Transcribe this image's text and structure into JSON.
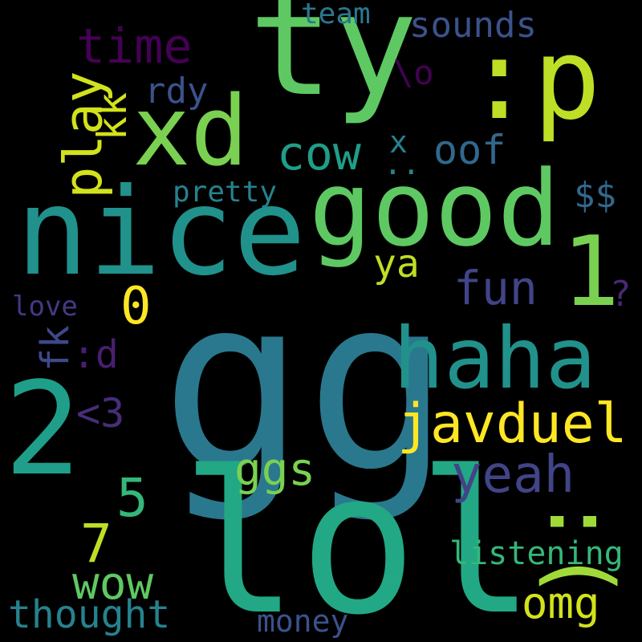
{
  "words": [
    {
      "text": "gg",
      "color": "#2a788e"
    },
    {
      "text": "lol",
      "color": "#22a884"
    },
    {
      "text": "ty",
      "color": "#5ec962"
    },
    {
      "text": ":p",
      "color": "#bddf26"
    },
    {
      "text": "nice",
      "color": "#21918c"
    },
    {
      "text": "good",
      "color": "#5ec962"
    },
    {
      "text": "xd",
      "color": "#7ad151"
    },
    {
      "text": "haha",
      "color": "#21918c"
    },
    {
      "text": "2",
      "color": "#1f9e89"
    },
    {
      "text": "1",
      "color": "#7ad151"
    },
    {
      "text": "javduel",
      "color": "#fde725"
    },
    {
      "text": ":(",
      "color": "#a0da39"
    },
    {
      "text": "time",
      "color": "#440154"
    },
    {
      "text": "play",
      "color": "#d2e21b"
    },
    {
      "text": "cow",
      "color": "#1f9e89"
    },
    {
      "text": "sounds",
      "color": "#3b528b"
    },
    {
      "text": "team",
      "color": "#2a788e"
    },
    {
      "text": "\\o",
      "color": "#440154"
    },
    {
      "text": "rdy",
      "color": "#3b528b"
    },
    {
      "text": "kk",
      "color": "#d2e21b"
    },
    {
      "text": "x",
      "color": "#26828e"
    },
    {
      "text": "..",
      "color": "#26828e"
    },
    {
      "text": "oof",
      "color": "#31688e"
    },
    {
      "text": "pretty",
      "color": "#26828e"
    },
    {
      "text": "$$",
      "color": "#31688e"
    },
    {
      "text": "ya",
      "color": "#bddf26"
    },
    {
      "text": "fun",
      "color": "#414487"
    },
    {
      "text": "0",
      "color": "#fde725"
    },
    {
      "text": "?",
      "color": "#482878"
    },
    {
      "text": "love",
      "color": "#443983"
    },
    {
      "text": ":d",
      "color": "#481f70"
    },
    {
      "text": "fk",
      "color": "#3e4989"
    },
    {
      "text": "<3",
      "color": "#472d7b"
    },
    {
      "text": "ggs",
      "color": "#7ad151"
    },
    {
      "text": "yeah",
      "color": "#414487"
    },
    {
      "text": "5",
      "color": "#35b779"
    },
    {
      "text": "7",
      "color": "#bddf26"
    },
    {
      "text": "wow",
      "color": "#5ec962"
    },
    {
      "text": "listening",
      "color": "#35b779"
    },
    {
      "text": "omg",
      "color": "#d2e21b"
    },
    {
      "text": "thought",
      "color": "#26828e"
    },
    {
      "text": "money",
      "color": "#3b528b"
    }
  ]
}
